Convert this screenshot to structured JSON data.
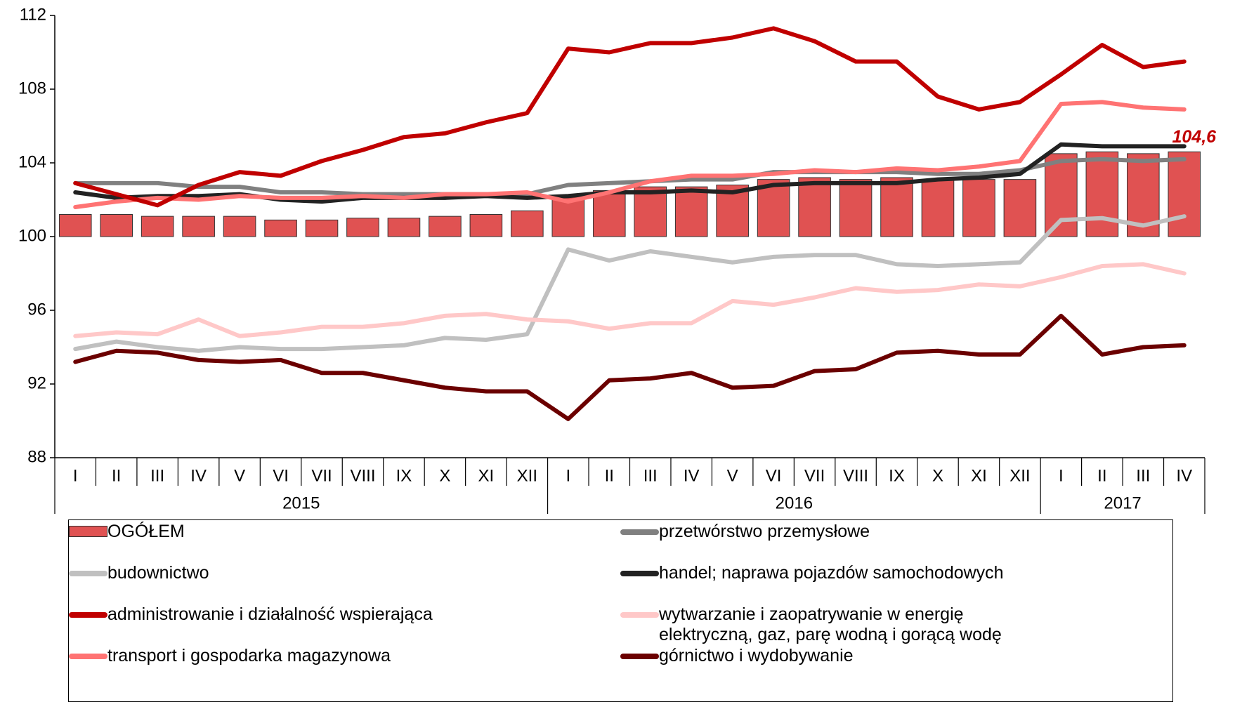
{
  "chart_data": {
    "type": "line",
    "categories": [
      "I",
      "II",
      "III",
      "IV",
      "V",
      "VI",
      "VII",
      "VIII",
      "IX",
      "X",
      "XI",
      "XII",
      "I",
      "II",
      "III",
      "IV",
      "V",
      "VI",
      "VII",
      "VIII",
      "IX",
      "X",
      "XI",
      "XII",
      "I",
      "II",
      "III",
      "IV"
    ],
    "groups": [
      {
        "label": "2015",
        "months": 12
      },
      {
        "label": "2016",
        "months": 12
      },
      {
        "label": "2017",
        "months": 4
      }
    ],
    "ylim": [
      88,
      112
    ],
    "yticks": [
      88,
      92,
      96,
      100,
      104,
      108,
      112
    ],
    "bar_base": 100,
    "grid": false,
    "bars": {
      "name": "OGÓŁEM",
      "color": "#e05252",
      "values": [
        101.2,
        101.2,
        101.1,
        101.1,
        101.1,
        100.9,
        100.9,
        101.0,
        101.0,
        101.1,
        101.2,
        101.4,
        102.2,
        102.5,
        102.7,
        102.7,
        102.8,
        103.1,
        103.2,
        103.1,
        103.2,
        103.1,
        103.1,
        103.1,
        104.5,
        104.6,
        104.5,
        104.6
      ],
      "value_labels": [
        null,
        null,
        null,
        null,
        null,
        null,
        null,
        null,
        null,
        null,
        null,
        null,
        null,
        null,
        null,
        null,
        null,
        null,
        null,
        null,
        null,
        null,
        null,
        null,
        null,
        null,
        null,
        "104,6"
      ]
    },
    "series": [
      {
        "name": "przetwórstwo przemysłowe",
        "color": "#808080",
        "values": [
          102.9,
          102.9,
          102.9,
          102.7,
          102.7,
          102.4,
          102.4,
          102.3,
          102.3,
          102.3,
          102.3,
          102.3,
          102.8,
          102.9,
          103.0,
          103.1,
          103.1,
          103.5,
          103.5,
          103.5,
          103.5,
          103.4,
          103.4,
          103.6,
          104.1,
          104.2,
          104.1,
          104.2
        ]
      },
      {
        "name": "budownictwo",
        "color": "#c0c0c0",
        "values": [
          93.9,
          94.3,
          94.0,
          93.8,
          94.0,
          93.9,
          93.9,
          94.0,
          94.1,
          94.5,
          94.4,
          94.7,
          99.3,
          98.7,
          99.2,
          98.9,
          98.6,
          98.9,
          99.0,
          99.0,
          98.5,
          98.4,
          98.5,
          98.6,
          100.9,
          101.0,
          100.6,
          101.1
        ]
      },
      {
        "name": "handel; naprawa pojazdów samochodowych",
        "color": "#222222",
        "values": [
          102.4,
          102.1,
          102.2,
          102.2,
          102.3,
          102.0,
          101.9,
          102.1,
          102.1,
          102.1,
          102.2,
          102.1,
          102.2,
          102.4,
          102.4,
          102.5,
          102.4,
          102.8,
          102.9,
          102.9,
          102.9,
          103.1,
          103.2,
          103.4,
          105.0,
          104.9,
          104.9,
          104.9
        ]
      },
      {
        "name": "administrowanie i działalność wspierająca",
        "color": "#c00000",
        "values": [
          102.9,
          102.3,
          101.7,
          102.8,
          103.5,
          103.3,
          104.1,
          104.7,
          105.4,
          105.6,
          106.2,
          106.7,
          110.2,
          110.0,
          110.5,
          110.5,
          110.8,
          111.3,
          110.6,
          109.5,
          109.5,
          107.6,
          106.9,
          107.3,
          108.8,
          110.4,
          109.2,
          109.5
        ]
      },
      {
        "name": "wytwarzanie i zaopatrywanie w energię elektryczną, gaz, parę wodną i gorącą wodę",
        "color": "#ffc8c8",
        "values": [
          94.6,
          94.8,
          94.7,
          95.5,
          94.6,
          94.8,
          95.1,
          95.1,
          95.3,
          95.7,
          95.8,
          95.5,
          95.4,
          95.0,
          95.3,
          95.3,
          96.5,
          96.3,
          96.7,
          97.2,
          97.0,
          97.1,
          97.4,
          97.3,
          97.8,
          98.4,
          98.5,
          98.0
        ]
      },
      {
        "name": "transport i gospodarka magazynowa",
        "color": "#ff7373",
        "values": [
          101.6,
          101.9,
          102.1,
          102.0,
          102.2,
          102.1,
          102.1,
          102.2,
          102.1,
          102.3,
          102.3,
          102.4,
          101.9,
          102.4,
          103.0,
          103.3,
          103.3,
          103.4,
          103.6,
          103.5,
          103.7,
          103.6,
          103.8,
          104.1,
          107.2,
          107.3,
          107.0,
          106.9
        ]
      },
      {
        "name": "górnictwo i wydobywanie",
        "color": "#6b0000",
        "values": [
          93.2,
          93.8,
          93.7,
          93.3,
          93.2,
          93.3,
          92.6,
          92.6,
          92.2,
          91.8,
          91.6,
          91.6,
          90.1,
          92.2,
          92.3,
          92.6,
          91.8,
          91.9,
          92.7,
          92.8,
          93.7,
          93.8,
          93.6,
          93.6,
          95.7,
          93.6,
          94.0,
          94.1
        ]
      }
    ]
  }
}
